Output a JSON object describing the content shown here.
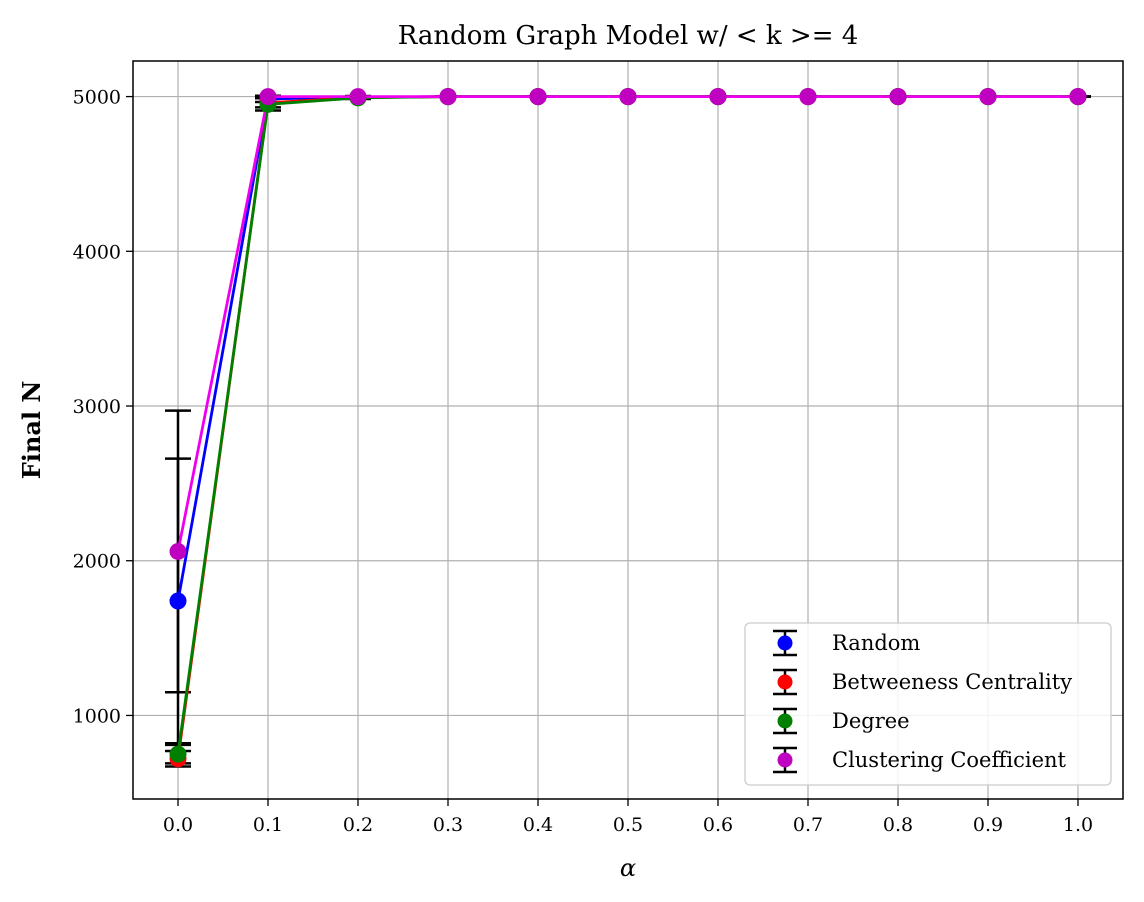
{
  "chart_data": {
    "type": "line",
    "title": "Random Graph Model w/ < k >= 4",
    "xlabel": "α",
    "ylabel": "Final N",
    "xlim": [
      -0.05,
      1.05
    ],
    "ylim": [
      460,
      5230
    ],
    "x": [
      0.0,
      0.1,
      0.2,
      0.3,
      0.4,
      0.5,
      0.6,
      0.7,
      0.8,
      0.9,
      1.0
    ],
    "xticks": [
      "0.0",
      "0.1",
      "0.2",
      "0.3",
      "0.4",
      "0.5",
      "0.6",
      "0.7",
      "0.8",
      "0.9",
      "1.0"
    ],
    "yticks": [
      1000,
      2000,
      3000,
      4000,
      5000
    ],
    "grid": true,
    "legend_position": "lower-right",
    "series": [
      {
        "name": "Random",
        "color": "#0000ff",
        "values": [
          1740,
          4985,
          4995,
          5000,
          5000,
          5000,
          5000,
          5000,
          5000,
          5000,
          5000
        ],
        "errors": [
          920,
          20,
          8,
          0,
          0,
          0,
          0,
          0,
          0,
          0,
          0
        ]
      },
      {
        "name": "Betweeness Centrality",
        "color": "#ff0000",
        "values": [
          720,
          4960,
          4995,
          5000,
          5000,
          5000,
          5000,
          5000,
          5000,
          5000,
          5000
        ],
        "errors": [
          50,
          30,
          8,
          0,
          0,
          0,
          0,
          0,
          0,
          0,
          0
        ]
      },
      {
        "name": "Degree",
        "color": "#008000",
        "values": [
          750,
          4950,
          4992,
          5000,
          5000,
          5000,
          5000,
          5000,
          5000,
          5000,
          5000
        ],
        "errors": [
          60,
          40,
          8,
          0,
          0,
          0,
          0,
          0,
          0,
          0,
          0
        ]
      },
      {
        "name": "Clustering Coefficient",
        "color": "#ee00ee",
        "markerColor": "#c000c0",
        "values": [
          2060,
          5000,
          5000,
          5000,
          5000,
          5000,
          5000,
          5000,
          5000,
          5000,
          5000
        ],
        "errors": [
          910,
          0,
          0,
          0,
          0,
          0,
          0,
          0,
          0,
          0,
          0
        ]
      }
    ]
  }
}
